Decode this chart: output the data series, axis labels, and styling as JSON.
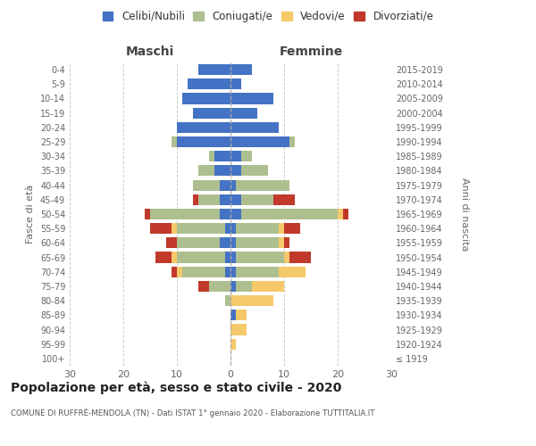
{
  "age_groups": [
    "100+",
    "95-99",
    "90-94",
    "85-89",
    "80-84",
    "75-79",
    "70-74",
    "65-69",
    "60-64",
    "55-59",
    "50-54",
    "45-49",
    "40-44",
    "35-39",
    "30-34",
    "25-29",
    "20-24",
    "15-19",
    "10-14",
    "5-9",
    "0-4"
  ],
  "birth_years": [
    "≤ 1919",
    "1920-1924",
    "1925-1929",
    "1930-1934",
    "1935-1939",
    "1940-1944",
    "1945-1949",
    "1950-1954",
    "1955-1959",
    "1960-1964",
    "1965-1969",
    "1970-1974",
    "1975-1979",
    "1980-1984",
    "1985-1989",
    "1990-1994",
    "1995-1999",
    "2000-2004",
    "2005-2009",
    "2010-2014",
    "2015-2019"
  ],
  "maschi": {
    "celibi": [
      0,
      0,
      0,
      0,
      0,
      0,
      1,
      1,
      2,
      1,
      2,
      2,
      2,
      3,
      3,
      10,
      10,
      7,
      9,
      8,
      6
    ],
    "coniugati": [
      0,
      0,
      0,
      0,
      1,
      4,
      8,
      9,
      8,
      9,
      13,
      4,
      5,
      3,
      1,
      1,
      0,
      0,
      0,
      0,
      0
    ],
    "vedovi": [
      0,
      0,
      0,
      0,
      0,
      0,
      1,
      1,
      0,
      1,
      0,
      0,
      0,
      0,
      0,
      0,
      0,
      0,
      0,
      0,
      0
    ],
    "divorziati": [
      0,
      0,
      0,
      0,
      0,
      2,
      1,
      3,
      2,
      4,
      1,
      1,
      0,
      0,
      0,
      0,
      0,
      0,
      0,
      0,
      0
    ]
  },
  "femmine": {
    "nubili": [
      0,
      0,
      0,
      1,
      0,
      1,
      1,
      1,
      1,
      1,
      2,
      2,
      1,
      2,
      2,
      11,
      9,
      5,
      8,
      2,
      4
    ],
    "coniugate": [
      0,
      0,
      0,
      0,
      0,
      3,
      8,
      9,
      8,
      8,
      18,
      6,
      10,
      5,
      2,
      1,
      0,
      0,
      0,
      0,
      0
    ],
    "vedove": [
      0,
      1,
      3,
      2,
      8,
      6,
      5,
      1,
      1,
      1,
      1,
      0,
      0,
      0,
      0,
      0,
      0,
      0,
      0,
      0,
      0
    ],
    "divorziate": [
      0,
      0,
      0,
      0,
      0,
      0,
      0,
      4,
      1,
      3,
      1,
      4,
      0,
      0,
      0,
      0,
      0,
      0,
      0,
      0,
      0
    ]
  },
  "colors": {
    "celibi": "#4472C4",
    "coniugati": "#ADBF8F",
    "vedovi": "#F5C96A",
    "divorziati": "#C0392B"
  },
  "title": "Popolazione per età, sesso e stato civile - 2020",
  "subtitle": "COMUNE DI RUFFRÈ-MENDOLA (TN) - Dati ISTAT 1° gennaio 2020 - Elaborazione TUTTITALIA.IT",
  "xlim": 30,
  "legend_labels": [
    "Celibi/Nubili",
    "Coniugati/e",
    "Vedovi/e",
    "Divorziati/e"
  ],
  "ylabel_left": "Fasce di età",
  "ylabel_right": "Anni di nascita",
  "xlabel_left": "Maschi",
  "xlabel_right": "Femmine"
}
